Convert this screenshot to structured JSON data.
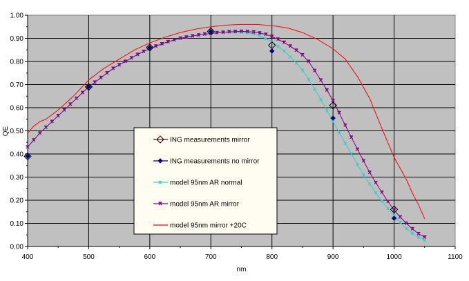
{
  "chart_data": {
    "type": "line",
    "title": "",
    "xlabel": "nm",
    "ylabel": "QE",
    "xlim": [
      400,
      1100
    ],
    "ylim": [
      0,
      1
    ],
    "x_ticks": [
      "400",
      "500",
      "600",
      "700",
      "800",
      "900",
      "1000",
      "1100"
    ],
    "y_ticks": [
      "0.00",
      "0.10",
      "0.20",
      "0.30",
      "0.40",
      "0.50",
      "0.60",
      "0.70",
      "0.80",
      "0.90",
      "1.00"
    ],
    "grid": true,
    "legend_position": "center-left",
    "series": [
      {
        "name": "ING measurements mirror",
        "color": "#800000",
        "marker": "open-diamond",
        "line": false,
        "x": [
          400,
          500,
          600,
          700,
          800,
          900,
          1000
        ],
        "y": [
          0.39,
          0.69,
          0.86,
          0.93,
          0.87,
          0.61,
          0.16
        ]
      },
      {
        "name": "ING measurements no mirror",
        "color": "#000080",
        "marker": "filled-diamond",
        "line": false,
        "x": [
          400,
          500,
          600,
          700,
          800,
          900,
          1000
        ],
        "y": [
          0.39,
          0.69,
          0.86,
          0.93,
          0.845,
          0.555,
          0.122
        ]
      },
      {
        "name": "model 95nm AR normal",
        "color": "#33cccc",
        "marker": "asterisk",
        "line": true,
        "x": [
          400,
          410,
          420,
          430,
          440,
          450,
          460,
          470,
          480,
          490,
          500,
          510,
          520,
          530,
          540,
          550,
          560,
          570,
          580,
          590,
          600,
          610,
          620,
          630,
          640,
          650,
          660,
          670,
          680,
          690,
          700,
          710,
          720,
          730,
          740,
          750,
          760,
          770,
          780,
          790,
          800,
          810,
          820,
          830,
          840,
          850,
          860,
          870,
          880,
          890,
          900,
          910,
          920,
          930,
          940,
          950,
          960,
          970,
          980,
          990,
          1000,
          1010,
          1020,
          1030,
          1040,
          1050
        ],
        "y": [
          0.43,
          0.46,
          0.49,
          0.515,
          0.54,
          0.565,
          0.59,
          0.615,
          0.64,
          0.665,
          0.69,
          0.71,
          0.73,
          0.75,
          0.77,
          0.785,
          0.8,
          0.815,
          0.83,
          0.843,
          0.855,
          0.866,
          0.876,
          0.885,
          0.893,
          0.9,
          0.905,
          0.91,
          0.914,
          0.918,
          0.921,
          0.924,
          0.926,
          0.927,
          0.927,
          0.926,
          0.924,
          0.92,
          0.912,
          0.898,
          0.885,
          0.865,
          0.845,
          0.82,
          0.793,
          0.763,
          0.723,
          0.68,
          0.635,
          0.588,
          0.54,
          0.493,
          0.446,
          0.4,
          0.355,
          0.31,
          0.27,
          0.232,
          0.196,
          0.164,
          0.134,
          0.105,
          0.077,
          0.057,
          0.04,
          0.028
        ]
      },
      {
        "name": "model 95nm AR mirror",
        "color": "#800080",
        "marker": "star",
        "line": true,
        "x": [
          400,
          410,
          420,
          430,
          440,
          450,
          460,
          470,
          480,
          490,
          500,
          510,
          520,
          530,
          540,
          550,
          560,
          570,
          580,
          590,
          600,
          610,
          620,
          630,
          640,
          650,
          660,
          670,
          680,
          690,
          700,
          710,
          720,
          730,
          740,
          750,
          760,
          770,
          780,
          790,
          800,
          810,
          820,
          830,
          840,
          850,
          860,
          870,
          880,
          890,
          900,
          910,
          920,
          930,
          940,
          950,
          960,
          970,
          980,
          990,
          1000,
          1010,
          1020,
          1030,
          1040,
          1050
        ],
        "y": [
          0.43,
          0.46,
          0.49,
          0.515,
          0.54,
          0.565,
          0.59,
          0.615,
          0.64,
          0.665,
          0.69,
          0.71,
          0.73,
          0.75,
          0.77,
          0.785,
          0.8,
          0.815,
          0.83,
          0.843,
          0.855,
          0.866,
          0.876,
          0.885,
          0.893,
          0.9,
          0.905,
          0.91,
          0.914,
          0.918,
          0.921,
          0.924,
          0.926,
          0.928,
          0.929,
          0.93,
          0.929,
          0.927,
          0.923,
          0.917,
          0.908,
          0.896,
          0.882,
          0.866,
          0.848,
          0.828,
          0.8,
          0.76,
          0.719,
          0.676,
          0.63,
          0.578,
          0.524,
          0.472,
          0.42,
          0.37,
          0.32,
          0.276,
          0.234,
          0.194,
          0.157,
          0.127,
          0.1,
          0.076,
          0.055,
          0.04
        ]
      },
      {
        "name": "model 95nm mirror +20C",
        "color": "#ff0000",
        "marker": "none",
        "line": true,
        "x": [
          400,
          410,
          420,
          430,
          450,
          475,
          500,
          525,
          550,
          575,
          600,
          625,
          650,
          675,
          700,
          725,
          750,
          775,
          800,
          825,
          850,
          875,
          900,
          920,
          940,
          960,
          980,
          1000,
          1020,
          1030,
          1040,
          1050
        ],
        "y": [
          0.49,
          0.52,
          0.54,
          0.55,
          0.59,
          0.65,
          0.72,
          0.77,
          0.81,
          0.85,
          0.88,
          0.905,
          0.925,
          0.94,
          0.95,
          0.957,
          0.96,
          0.96,
          0.955,
          0.945,
          0.925,
          0.895,
          0.855,
          0.81,
          0.735,
          0.64,
          0.51,
          0.385,
          0.29,
          0.23,
          0.18,
          0.12
        ]
      }
    ]
  }
}
